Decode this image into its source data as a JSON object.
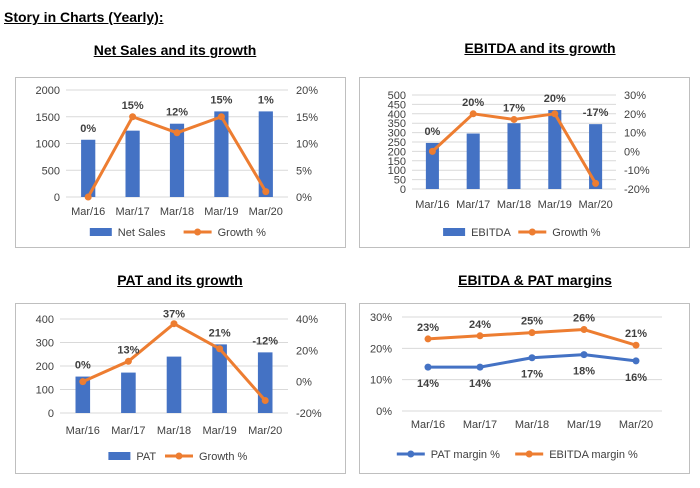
{
  "page_title": "Story in Charts (Yearly):",
  "colors": {
    "bar": "#4472C4",
    "growth": "#ED7D31",
    "pat_margin": "#4472C4",
    "ebitda_margin": "#ED7D31",
    "grid": "#d9d9d9"
  },
  "chart_data": [
    {
      "type": "bar",
      "title": "Net Sales and its growth",
      "categories": [
        "Mar/16",
        "Mar/17",
        "Mar/18",
        "Mar/19",
        "Mar/20"
      ],
      "series": [
        {
          "name": "Net Sales",
          "type": "bar",
          "axis": "left",
          "values": [
            1070,
            1240,
            1370,
            1600,
            1600
          ]
        },
        {
          "name": "Growth %",
          "type": "line",
          "axis": "right",
          "values": [
            0,
            15,
            12,
            15,
            1
          ],
          "labels": [
            "0%",
            "15%",
            "12%",
            "15%",
            "1%"
          ]
        }
      ],
      "y_left": {
        "min": 0,
        "max": 2000,
        "ticks": [
          0,
          500,
          1000,
          1500,
          2000
        ],
        "tick_labels": [
          "0",
          "500",
          "1000",
          "1500",
          "2000"
        ]
      },
      "y_right": {
        "min": 0,
        "max": 20,
        "ticks": [
          0,
          5,
          10,
          15,
          20
        ],
        "tick_labels": [
          "0%",
          "5%",
          "10%",
          "15%",
          "20%"
        ]
      },
      "legend": "bottom",
      "grid": true
    },
    {
      "type": "bar",
      "title": "EBITDA and its growth",
      "categories": [
        "Mar/16",
        "Mar/17",
        "Mar/18",
        "Mar/19",
        "Mar/20"
      ],
      "series": [
        {
          "name": "EBITDA",
          "type": "bar",
          "axis": "left",
          "values": [
            245,
            295,
            350,
            420,
            345
          ]
        },
        {
          "name": "Growth %",
          "type": "line",
          "axis": "right",
          "values": [
            0,
            20,
            17,
            20,
            -17
          ],
          "labels": [
            "0%",
            "20%",
            "17%",
            "20%",
            "-17%"
          ]
        }
      ],
      "y_left": {
        "min": 0,
        "max": 500,
        "ticks": [
          0,
          50,
          100,
          150,
          200,
          250,
          300,
          350,
          400,
          450,
          500
        ],
        "tick_labels": [
          "0",
          "50",
          "100",
          "150",
          "200",
          "250",
          "300",
          "350",
          "400",
          "450",
          "500"
        ]
      },
      "y_right": {
        "min": -20,
        "max": 30,
        "ticks": [
          -20,
          -10,
          0,
          10,
          20,
          30
        ],
        "tick_labels": [
          "-20%",
          "-10%",
          "0%",
          "10%",
          "20%",
          "30%"
        ]
      },
      "legend": "bottom",
      "grid": true
    },
    {
      "type": "bar",
      "title": "PAT and its growth",
      "categories": [
        "Mar/16",
        "Mar/17",
        "Mar/18",
        "Mar/19",
        "Mar/20"
      ],
      "series": [
        {
          "name": "PAT",
          "type": "bar",
          "axis": "left",
          "values": [
            155,
            172,
            240,
            292,
            258
          ]
        },
        {
          "name": "Growth %",
          "type": "line",
          "axis": "right",
          "values": [
            0,
            13,
            37,
            21,
            -12
          ],
          "labels": [
            "0%",
            "13%",
            "37%",
            "21%",
            "-12%"
          ]
        }
      ],
      "y_left": {
        "min": 0,
        "max": 400,
        "ticks": [
          0,
          100,
          200,
          300,
          400
        ],
        "tick_labels": [
          "0",
          "100",
          "200",
          "300",
          "400"
        ]
      },
      "y_right": {
        "min": -20,
        "max": 40,
        "ticks": [
          -20,
          0,
          20,
          40
        ],
        "tick_labels": [
          "-20%",
          "0%",
          "20%",
          "40%"
        ]
      },
      "legend": "bottom",
      "grid": true
    },
    {
      "type": "line",
      "title": "EBITDA & PAT margins",
      "categories": [
        "Mar/16",
        "Mar/17",
        "Mar/18",
        "Mar/19",
        "Mar/20"
      ],
      "series": [
        {
          "name": "PAT margin %",
          "type": "line",
          "axis": "left",
          "values": [
            14,
            14,
            17,
            18,
            16
          ],
          "labels": [
            "14%",
            "14%",
            "17%",
            "18%",
            "16%"
          ]
        },
        {
          "name": "EBITDA margin %",
          "type": "line",
          "axis": "left",
          "values": [
            23,
            24,
            25,
            26,
            21
          ],
          "labels": [
            "23%",
            "24%",
            "25%",
            "26%",
            "21%"
          ]
        }
      ],
      "y_left": {
        "min": 0,
        "max": 30,
        "ticks": [
          0,
          10,
          20,
          30
        ],
        "tick_labels": [
          "0%",
          "10%",
          "20%",
          "30%"
        ]
      },
      "legend": "bottom",
      "grid": true
    }
  ]
}
